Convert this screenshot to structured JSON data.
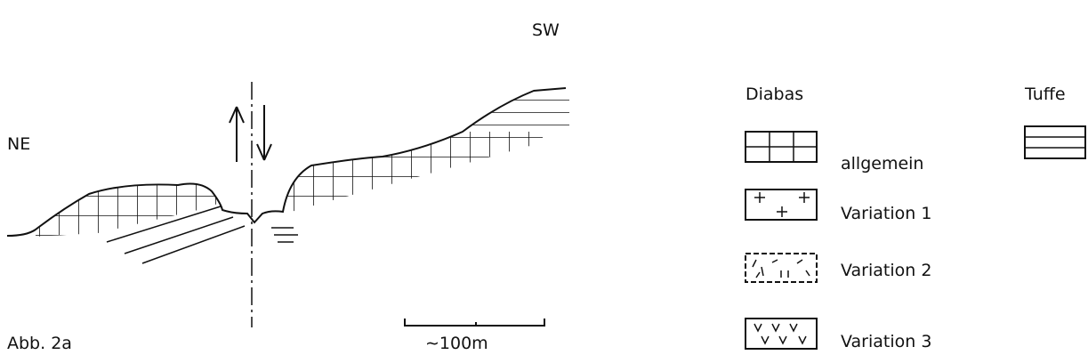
{
  "figure": {
    "top_label": "SW",
    "left_label": "NE",
    "caption": "Abb. 2a",
    "scale_label": "∼100m"
  },
  "legend": {
    "diabas_title": "Diabas",
    "tuffe_title": "Tuffe",
    "items": [
      "allgemein",
      "Variation 1",
      "Variation 2",
      "Variation 3"
    ]
  }
}
